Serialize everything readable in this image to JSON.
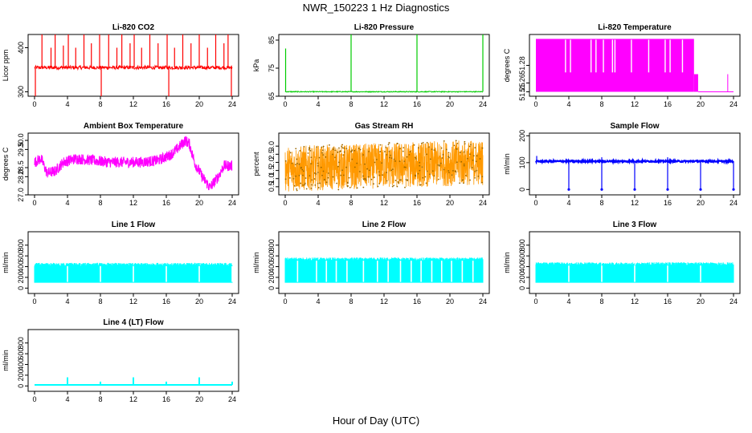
{
  "figure": {
    "title": "NWR_150223  1 Hz Diagnostics",
    "xlabel": "Hour of Day (UTC)"
  },
  "chart_data": [
    {
      "type": "line",
      "title": "Li-820 CO2",
      "xlabel": "",
      "ylabel": "Licor ppm",
      "xlim": [
        0,
        24
      ],
      "ylim": [
        290,
        430
      ],
      "xticks": [
        0,
        4,
        8,
        12,
        16,
        20,
        24
      ],
      "yticks": [
        300,
        400
      ],
      "color": "#ff0000",
      "grid": false,
      "series": [
        {
          "baseline": 355,
          "events": [
            {
              "x": 0.1,
              "y": 265
            },
            {
              "x": 0.9,
              "y": 430
            },
            {
              "x": 2,
              "y": 400
            },
            {
              "x": 2.5,
              "y": 430
            },
            {
              "x": 3.5,
              "y": 405
            },
            {
              "x": 4.1,
              "y": 430
            },
            {
              "x": 5,
              "y": 400
            },
            {
              "x": 6,
              "y": 430
            },
            {
              "x": 6.9,
              "y": 410
            },
            {
              "x": 7.9,
              "y": 430
            },
            {
              "x": 8.1,
              "y": 275
            },
            {
              "x": 9,
              "y": 430
            },
            {
              "x": 10,
              "y": 400
            },
            {
              "x": 10.6,
              "y": 430
            },
            {
              "x": 11.6,
              "y": 410
            },
            {
              "x": 12.1,
              "y": 430
            },
            {
              "x": 13,
              "y": 400
            },
            {
              "x": 14,
              "y": 430
            },
            {
              "x": 15,
              "y": 410
            },
            {
              "x": 16.1,
              "y": 430
            },
            {
              "x": 16.3,
              "y": 280
            },
            {
              "x": 17,
              "y": 400
            },
            {
              "x": 18,
              "y": 430
            },
            {
              "x": 19,
              "y": 410
            },
            {
              "x": 20,
              "y": 430
            },
            {
              "x": 21,
              "y": 400
            },
            {
              "x": 22,
              "y": 430
            },
            {
              "x": 23,
              "y": 410
            },
            {
              "x": 23.5,
              "y": 430
            },
            {
              "x": 23.9,
              "y": 290
            }
          ]
        }
      ]
    },
    {
      "type": "line",
      "title": "Li-820 Pressure",
      "xlabel": "",
      "ylabel": "kPa",
      "xlim": [
        0,
        24
      ],
      "ylim": [
        65,
        87
      ],
      "xticks": [
        0,
        4,
        8,
        12,
        16,
        20,
        24
      ],
      "yticks": [
        65,
        75,
        85
      ],
      "color": "#00cc00",
      "grid": false,
      "series": [
        {
          "baseline": 66.6,
          "events": [
            {
              "x": 0.05,
              "y": 82
            },
            {
              "x": 8,
              "y": 87
            },
            {
              "x": 16,
              "y": 87
            },
            {
              "x": 24,
              "y": 87
            }
          ]
        }
      ]
    },
    {
      "type": "line",
      "title": "Li-820 Temperature",
      "xlabel": "",
      "ylabel": "degrees C",
      "xlim": [
        0,
        24
      ],
      "ylim": [
        51.245,
        51.315
      ],
      "xticks": [
        0,
        4,
        8,
        12,
        16,
        20,
        24
      ],
      "yticks": [
        51.25,
        51.26,
        51.28
      ],
      "color": "#ff00ff",
      "grid": false,
      "series": [
        {
          "high": 51.31,
          "low": 51.25,
          "toggle_until": 19.2,
          "dense_until": 19.7,
          "tail_spike_x": 23.3,
          "gaps": [
            3.6,
            4.2,
            6.7,
            7.3,
            8.2,
            9.3,
            9.6,
            11.6,
            13.7,
            15.7,
            16.3,
            17.8
          ]
        }
      ]
    },
    {
      "type": "line",
      "title": "Ambient Box Temperature",
      "xlabel": "",
      "ylabel": "degrees C",
      "xlim": [
        0,
        24
      ],
      "ylim": [
        27.0,
        30.4
      ],
      "xticks": [
        0,
        4,
        8,
        12,
        16,
        20,
        24
      ],
      "yticks": [
        27.0,
        28.0,
        28.5,
        29.5,
        30.0
      ],
      "color": "#ff00ff",
      "grid": false,
      "series": [
        {
          "profile": [
            [
              0,
              28.8
            ],
            [
              0.8,
              29.0
            ],
            [
              1.5,
              28.2
            ],
            [
              2.5,
              28.3
            ],
            [
              3.5,
              28.8
            ],
            [
              5,
              29.0
            ],
            [
              7,
              28.9
            ],
            [
              9,
              28.8
            ],
            [
              11,
              28.8
            ],
            [
              13,
              28.8
            ],
            [
              15,
              28.9
            ],
            [
              16.5,
              29.2
            ],
            [
              17.5,
              29.6
            ],
            [
              18.3,
              30.0
            ],
            [
              18.8,
              29.8
            ],
            [
              19.5,
              28.7
            ],
            [
              20.5,
              27.9
            ],
            [
              21.3,
              27.4
            ],
            [
              22.3,
              28.0
            ],
            [
              23,
              28.6
            ],
            [
              24,
              28.6
            ]
          ],
          "noise": 0.3
        }
      ]
    },
    {
      "type": "line",
      "title": "Gas Stream RH",
      "xlabel": "",
      "ylabel": "percent",
      "xlim": [
        0,
        24
      ],
      "ylim": [
        0.0,
        3.8
      ],
      "xticks": [
        0,
        4,
        8,
        12,
        16,
        20,
        24
      ],
      "yticks": [
        0.5,
        1.0,
        1.5,
        2.0,
        2.5,
        3.0
      ],
      "color": "#ff9900",
      "grid": false,
      "series": [
        {
          "center_start": 1.6,
          "center_end": 2.0,
          "spread": 1.4
        }
      ]
    },
    {
      "type": "line",
      "title": "Sample Flow",
      "xlabel": "",
      "ylabel": "ml/min",
      "xlim": [
        0,
        24
      ],
      "ylim": [
        -20,
        210
      ],
      "xticks": [
        0,
        4,
        8,
        12,
        16,
        20,
        24
      ],
      "yticks": [
        0,
        100,
        200
      ],
      "color": "#0000ff",
      "grid": false,
      "series": [
        {
          "baseline": 105,
          "dips": [
            4,
            8,
            12,
            16,
            20,
            24
          ]
        }
      ]
    },
    {
      "type": "line",
      "title": "Line 1 Flow",
      "xlabel": "",
      "ylabel": "ml/min",
      "xlim": [
        0,
        24
      ],
      "ylim": [
        -100,
        1050
      ],
      "xticks": [
        0,
        4,
        8,
        12,
        16,
        20,
        24
      ],
      "yticks": [
        0,
        200,
        400,
        600,
        800
      ],
      "color": "#00ffff",
      "grid": false,
      "series": [
        {
          "band": [
            100,
            470
          ],
          "gaps": [
            4,
            8,
            12,
            16,
            20,
            24
          ]
        }
      ]
    },
    {
      "type": "line",
      "title": "Line 2 Flow",
      "xlabel": "",
      "ylabel": "ml/min",
      "xlim": [
        0,
        24
      ],
      "ylim": [
        -100,
        1050
      ],
      "xticks": [
        0,
        4,
        8,
        12,
        16,
        20,
        24
      ],
      "yticks": [
        0,
        200,
        400,
        600,
        800
      ],
      "color": "#00ffff",
      "grid": false,
      "series": [
        {
          "band": [
            100,
            570
          ],
          "gaps": [
            1.5,
            3.8,
            5,
            6.2,
            7.5,
            9.5,
            11.2,
            12.5,
            14,
            15.3,
            16.5,
            17.8,
            19,
            20.2,
            21.5,
            22.8
          ]
        }
      ]
    },
    {
      "type": "line",
      "title": "Line 3 Flow",
      "xlabel": "",
      "ylabel": "ml/min",
      "xlim": [
        0,
        24
      ],
      "ylim": [
        -100,
        1050
      ],
      "xticks": [
        0,
        4,
        8,
        12,
        16,
        20,
        24
      ],
      "yticks": [
        0,
        200,
        400,
        600,
        800
      ],
      "color": "#00ffff",
      "grid": false,
      "series": [
        {
          "band": [
            100,
            480
          ],
          "gaps": [
            4,
            8,
            12,
            16,
            20
          ]
        }
      ]
    },
    {
      "type": "line",
      "title": "Line 4 (LT) Flow",
      "xlabel": "",
      "ylabel": "ml/min",
      "xlim": [
        0,
        24
      ],
      "ylim": [
        -100,
        1050
      ],
      "xticks": [
        0,
        4,
        8,
        12,
        16,
        20,
        24
      ],
      "yticks": [
        0,
        200,
        400,
        600,
        800
      ],
      "color": "#00ffff",
      "grid": false,
      "series": [
        {
          "baseline": 20,
          "spikes": [
            {
              "x": 4,
              "y": 160
            },
            {
              "x": 8,
              "y": 80
            },
            {
              "x": 12,
              "y": 160
            },
            {
              "x": 16,
              "y": 80
            },
            {
              "x": 20,
              "y": 160
            },
            {
              "x": 24,
              "y": 80
            }
          ]
        }
      ]
    }
  ]
}
